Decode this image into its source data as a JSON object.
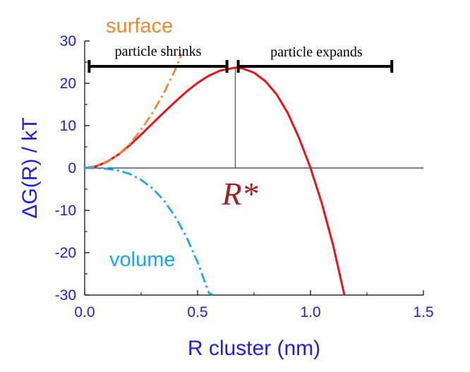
{
  "chart_data": {
    "type": "line",
    "xlabel": "R cluster (nm)",
    "ylabel": "ΔG(R) / kT",
    "xlim": [
      0,
      1.5
    ],
    "ylim": [
      -30,
      30
    ],
    "xticks": [
      "0.0",
      "0.5",
      "1.0",
      "1.5"
    ],
    "yticks": [
      "-30",
      "-20",
      "-10",
      "0",
      "10",
      "20",
      "30"
    ],
    "grid": false,
    "series": [
      {
        "name": "",
        "style": "solid",
        "color": "#e8141c",
        "x": [
          0.0,
          0.05,
          0.1,
          0.15,
          0.2,
          0.25,
          0.3,
          0.35,
          0.4,
          0.45,
          0.5,
          0.55,
          0.6,
          0.667,
          0.7,
          0.75,
          0.8,
          0.85,
          0.9,
          0.95,
          1.0,
          1.05,
          1.1,
          1.15
        ],
        "values": [
          0.0,
          0.4,
          1.5,
          3.2,
          5.4,
          7.9,
          10.5,
          13.1,
          15.6,
          18.0,
          20.1,
          21.8,
          23.0,
          23.7,
          23.5,
          22.5,
          20.5,
          17.4,
          12.9,
          7.0,
          0.0,
          -8.3,
          -18.2,
          -30.0
        ]
      },
      {
        "name": "surface",
        "style": "dash-dot",
        "color": "#ee8a34",
        "x": [
          0.0,
          0.05,
          0.1,
          0.15,
          0.2,
          0.25,
          0.3,
          0.35,
          0.4,
          0.43
        ],
        "values": [
          0.0,
          0.35,
          1.4,
          3.2,
          5.7,
          9.0,
          13.0,
          17.6,
          23.1,
          27.0
        ]
      },
      {
        "name": "volume",
        "style": "dash-dot",
        "color": "#19a8ee",
        "x": [
          0.0,
          0.05,
          0.1,
          0.15,
          0.2,
          0.25,
          0.3,
          0.35,
          0.4,
          0.45,
          0.5,
          0.55,
          0.57
        ],
        "values": [
          0.0,
          -0.01,
          -0.2,
          -0.6,
          -1.4,
          -2.8,
          -4.8,
          -7.6,
          -11.4,
          -16.2,
          -22.2,
          -29.5,
          -30.0
        ]
      }
    ],
    "annotations": {
      "critical_radius_label": "R*",
      "critical_radius_x": 0.667,
      "shrink_label": "particle shrinks",
      "shrink_range": [
        0.02,
        0.63
      ],
      "expand_label": "particle expands",
      "expand_range": [
        0.68,
        1.36
      ],
      "bar_y": 24.0
    },
    "colors": {
      "axis": "#000000",
      "tick_labels": "#1f1fe6",
      "critical_label": "#a51e22",
      "ranges": "#000000"
    }
  }
}
